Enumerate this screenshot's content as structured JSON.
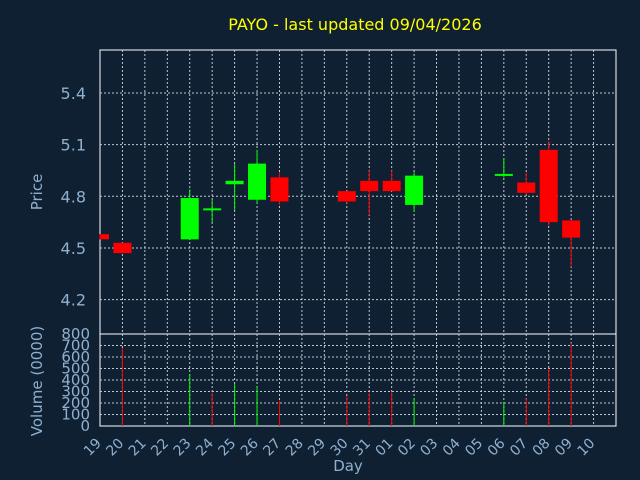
{
  "chart_data": [
    {
      "type": "candlestick",
      "title": "PAYO - last updated 09/04/2026",
      "ylabel": "Price",
      "ylim": [
        4.0,
        5.65
      ],
      "yticks": [
        4.2,
        4.5,
        4.8,
        5.1,
        5.4
      ],
      "ytick_labels": [
        "4.2",
        "4.5",
        "4.8",
        "5.1",
        "5.4"
      ],
      "grid": true,
      "up_color": "#00ff00",
      "down_color": "#ff0000",
      "series": [
        {
          "day": "19",
          "open": 4.58,
          "high": 4.58,
          "low": 4.55,
          "close": 4.55
        },
        {
          "day": "20",
          "open": 4.53,
          "high": 4.53,
          "low": 4.47,
          "close": 4.47
        },
        {
          "day": "23",
          "open": 4.55,
          "high": 4.84,
          "low": 4.55,
          "close": 4.79
        },
        {
          "day": "24",
          "open": 4.73,
          "high": 4.78,
          "low": 4.65,
          "close": 4.73
        },
        {
          "day": "25",
          "open": 4.87,
          "high": 4.99,
          "low": 4.72,
          "close": 4.89
        },
        {
          "day": "26",
          "open": 4.78,
          "high": 5.07,
          "low": 4.76,
          "close": 4.99
        },
        {
          "day": "27",
          "open": 4.91,
          "high": 4.94,
          "low": 4.75,
          "close": 4.77
        },
        {
          "day": "30",
          "open": 4.83,
          "high": 4.83,
          "low": 4.76,
          "close": 4.77
        },
        {
          "day": "31",
          "open": 4.89,
          "high": 4.95,
          "low": 4.69,
          "close": 4.83
        },
        {
          "day": "01",
          "open": 4.89,
          "high": 4.95,
          "low": 4.83,
          "close": 4.83
        },
        {
          "day": "02",
          "open": 4.75,
          "high": 4.94,
          "low": 4.71,
          "close": 4.92
        },
        {
          "day": "06",
          "open": 4.92,
          "high": 5.02,
          "low": 4.91,
          "close": 4.93
        },
        {
          "day": "07",
          "open": 4.88,
          "high": 4.94,
          "low": 4.81,
          "close": 4.82
        },
        {
          "day": "08",
          "open": 5.07,
          "high": 5.12,
          "low": 4.63,
          "close": 4.65
        },
        {
          "day": "09",
          "open": 4.66,
          "high": 4.66,
          "low": 4.39,
          "close": 4.56
        }
      ]
    },
    {
      "type": "bar",
      "ylabel": "Volume (0000)",
      "xlabel": "Day",
      "ylim": [
        0,
        800
      ],
      "yticks": [
        0,
        100,
        200,
        300,
        400,
        500,
        600,
        700,
        800
      ],
      "ytick_labels": [
        "0",
        "100",
        "200",
        "300",
        "400",
        "500",
        "600",
        "700",
        "800"
      ],
      "grid": true,
      "categories": [
        "19",
        "20",
        "21",
        "22",
        "23",
        "24",
        "25",
        "26",
        "27",
        "28",
        "29",
        "30",
        "31",
        "01",
        "02",
        "03",
        "04",
        "05",
        "06",
        "07",
        "08",
        "09",
        "10"
      ],
      "values": [
        null,
        680,
        null,
        null,
        450,
        290,
        370,
        340,
        220,
        null,
        null,
        260,
        290,
        300,
        240,
        null,
        null,
        null,
        210,
        240,
        500,
        720,
        null
      ],
      "colors": [
        null,
        "#ff0000",
        null,
        null,
        "#00ff00",
        "#ff0000",
        "#00ff00",
        "#00ff00",
        "#ff0000",
        null,
        null,
        "#ff0000",
        "#ff0000",
        "#ff0000",
        "#00ff00",
        null,
        null,
        null,
        "#00ff00",
        "#ff0000",
        "#ff0000",
        "#ff0000",
        null
      ]
    }
  ]
}
